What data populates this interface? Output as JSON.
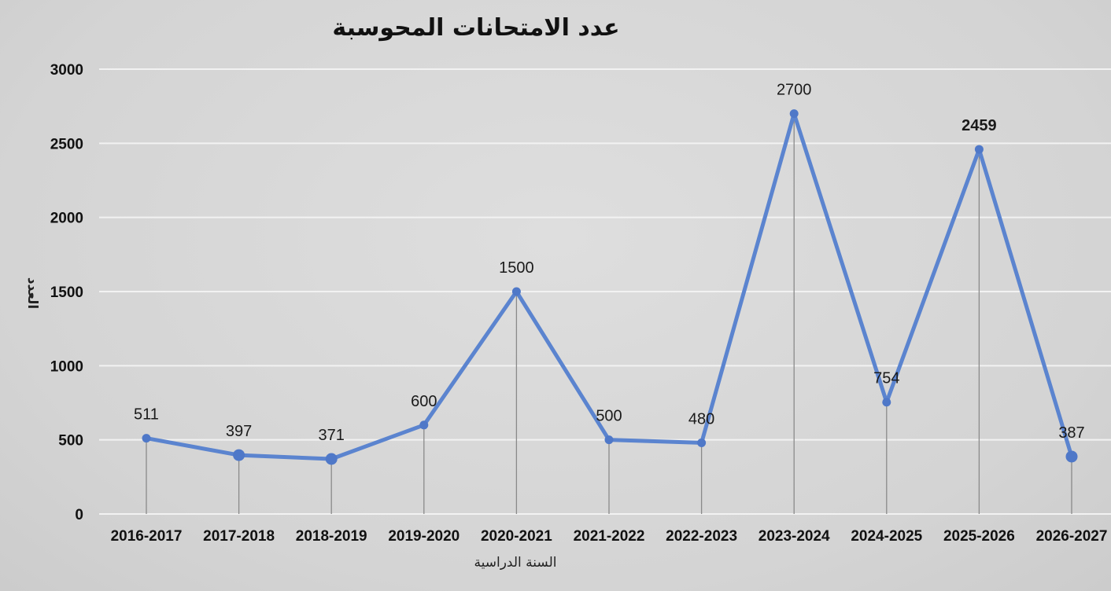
{
  "chart_data": {
    "type": "line",
    "title": "عدد الامتحانات المحوسبة",
    "xlabel": "السنة الدراسية",
    "ylabel": "العدد",
    "categories": [
      "2016-2017",
      "2017-2018",
      "2018-2019",
      "2019-2020",
      "2020-2021",
      "2021-2022",
      "2022-2023",
      "2023-2024",
      "2024-2025",
      "2025-2026",
      "2026-2027"
    ],
    "series": [
      {
        "values": [
          511,
          397,
          371,
          600,
          1500,
          500,
          480,
          2700,
          754,
          2459,
          387
        ],
        "data_labels": [
          "511",
          "397",
          "371",
          "600",
          "1500",
          "500",
          "480",
          "2700",
          "754",
          "2459",
          "387"
        ]
      }
    ],
    "ylim": [
      0,
      3000
    ],
    "yticks": [
      "0",
      "500",
      "1000",
      "1500",
      "2000",
      "2500",
      "3000"
    ],
    "grid": true,
    "legend": "none",
    "colors": {
      "line": "#5b84cf",
      "marker": "#4f78c8",
      "grid": "#f2f2f2",
      "drop_line": "#8a8a8a",
      "text": "#111111"
    }
  }
}
